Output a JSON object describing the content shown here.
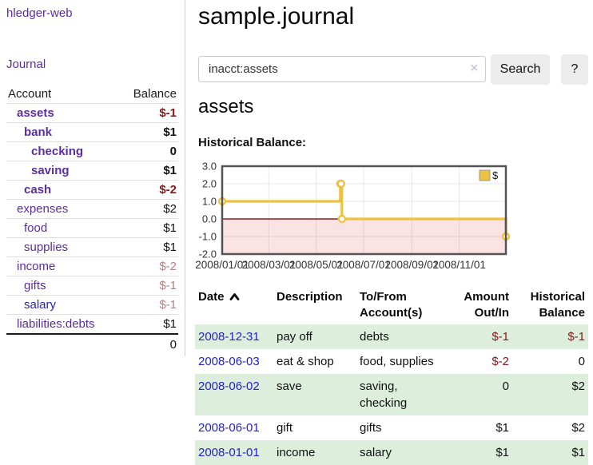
{
  "app": {
    "brand": "hledger-web"
  },
  "colors": {
    "link_purple": "#5b2d9e",
    "link_blue": "#2222cc",
    "negative_strong": "#8b1515",
    "negative_muted": "#bc7f7f",
    "row_stripe_green": "#ddeedd",
    "series_gold": "#EDC240",
    "negative_region_pink": "#fbe3e4",
    "zero_line_red": "#8b1c1c",
    "button_gray": "#ececec"
  },
  "sidebar": {
    "nav_journal": "Journal",
    "table": {
      "headers": {
        "account": "Account",
        "balance": "Balance"
      },
      "accounts": [
        {
          "name": "assets",
          "depth": 1,
          "bold": true,
          "balance": "$-1",
          "balance_class": "neg-strong",
          "link_color": "purple"
        },
        {
          "name": "bank",
          "depth": 2,
          "bold": true,
          "balance": "$1",
          "balance_class": "pos",
          "link_color": "purple"
        },
        {
          "name": "checking",
          "depth": 3,
          "bold": true,
          "balance": "0",
          "balance_class": "pos",
          "link_color": "purple"
        },
        {
          "name": "saving",
          "depth": 3,
          "bold": true,
          "balance": "$1",
          "balance_class": "pos",
          "link_color": "purple"
        },
        {
          "name": "cash",
          "depth": 2,
          "bold": true,
          "balance": "$-2",
          "balance_class": "neg-strong",
          "link_color": "purple"
        },
        {
          "name": "expenses",
          "depth": 1,
          "bold": false,
          "balance": "$2",
          "balance_class": "pos",
          "link_color": "purple"
        },
        {
          "name": "food",
          "depth": 2,
          "bold": false,
          "balance": "$1",
          "balance_class": "pos",
          "link_color": "purple"
        },
        {
          "name": "supplies",
          "depth": 2,
          "bold": false,
          "balance": "$1",
          "balance_class": "pos",
          "link_color": "purple"
        },
        {
          "name": "income",
          "depth": 1,
          "bold": false,
          "balance": "$-2",
          "balance_class": "neg-muted",
          "link_color": "purple"
        },
        {
          "name": "gifts",
          "depth": 2,
          "bold": false,
          "balance": "$-1",
          "balance_class": "neg-muted",
          "link_color": "purple"
        },
        {
          "name": "salary",
          "depth": 2,
          "bold": false,
          "balance": "$-1",
          "balance_class": "neg-muted",
          "link_color": "blue"
        },
        {
          "name": "liabilities:debts",
          "depth": 1,
          "bold": false,
          "balance": "$1",
          "balance_class": "pos",
          "link_color": "purple"
        }
      ],
      "total": "0"
    }
  },
  "header": {
    "title": "sample.journal"
  },
  "search": {
    "value": "inacct:assets",
    "clear_icon": "×",
    "button_label": "Search",
    "help_label": "?"
  },
  "account_page": {
    "title": "assets",
    "chart_label": "Historical Balance:"
  },
  "chart_data": {
    "type": "line",
    "style": "step",
    "title": "Historical Balance",
    "legend": [
      {
        "label": "$",
        "color": "#EDC240"
      }
    ],
    "legend_position": "top-right",
    "grid": true,
    "x_range": [
      "2008-01-01",
      "2008-12-31"
    ],
    "ylim": [
      -2,
      3
    ],
    "y_ticks": [
      "3.0",
      "2.0",
      "1.0",
      "0.0",
      "-1.0",
      "-2.0"
    ],
    "x_tick_dates": [
      "2008-01-01",
      "2008-03-01",
      "2008-05-01",
      "2008-07-01",
      "2008-09-01",
      "2008-11-01"
    ],
    "x_tick_labels": [
      "2008/01/01",
      "2008/03/01",
      "2008/05/01",
      "2008/07/01",
      "2008/09/01",
      "2008/11/01"
    ],
    "series": [
      {
        "name": "$",
        "color": "#EDC240",
        "points": [
          {
            "x": "2008-01-01",
            "y": 1
          },
          {
            "x": "2008-06-01",
            "y": 2
          },
          {
            "x": "2008-06-02",
            "y": 2
          },
          {
            "x": "2008-06-03",
            "y": 0
          },
          {
            "x": "2008-12-31",
            "y": -1
          }
        ]
      }
    ],
    "negative_region_fill": "#fbe3e4",
    "zero_line_color": "#8b1c1c"
  },
  "register": {
    "headers": {
      "date": "Date",
      "description": "Description",
      "accounts": "To/From Account(s)",
      "amount": "Amount Out/In",
      "balance": "Historical Balance"
    },
    "sort": {
      "column": "date",
      "direction": "ascending"
    },
    "rows": [
      {
        "date": "2008-12-31",
        "description": "pay off",
        "accounts": "debts",
        "amount": "$-1",
        "amount_negative": true,
        "balance": "$-1",
        "balance_negative": true
      },
      {
        "date": "2008-06-03",
        "description": "eat & shop",
        "accounts": "food, supplies",
        "amount": "$-2",
        "amount_negative": true,
        "balance": "0",
        "balance_negative": false
      },
      {
        "date": "2008-06-02",
        "description": "save",
        "accounts": "saving, checking",
        "amount": "0",
        "amount_negative": false,
        "balance": "$2",
        "balance_negative": false
      },
      {
        "date": "2008-06-01",
        "description": "gift",
        "accounts": "gifts",
        "amount": "$1",
        "amount_negative": false,
        "balance": "$2",
        "balance_negative": false
      },
      {
        "date": "2008-01-01",
        "description": "income",
        "accounts": "salary",
        "amount": "$1",
        "amount_negative": false,
        "balance": "$1",
        "balance_negative": false
      }
    ]
  }
}
